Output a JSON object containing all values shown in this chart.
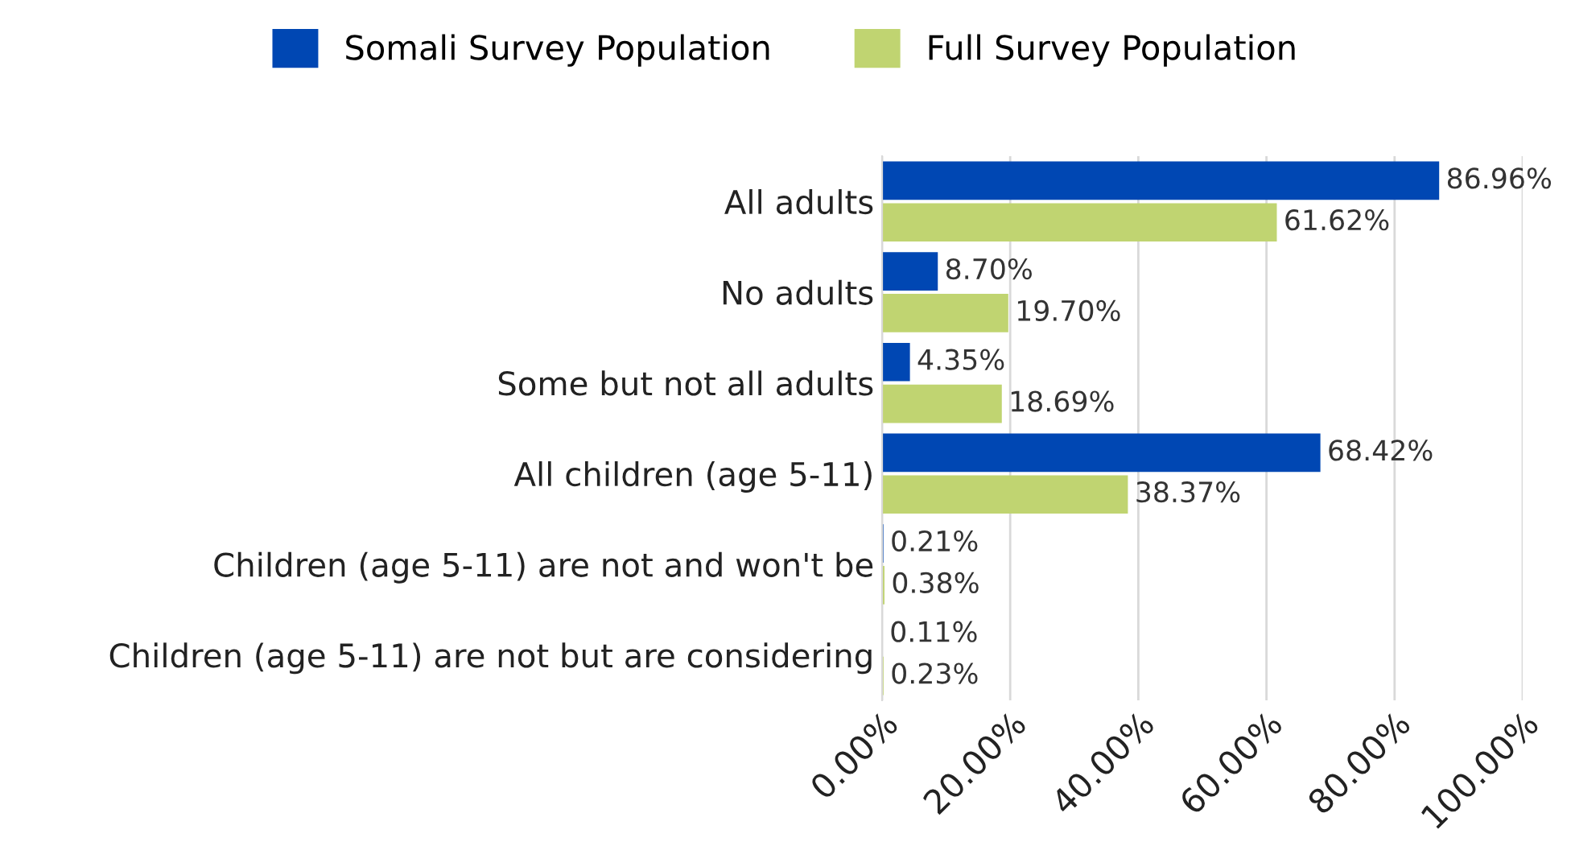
{
  "chart_data": {
    "type": "bar",
    "orientation": "horizontal",
    "categories": [
      "All adults",
      "No adults",
      "Some but not all adults",
      "All children (age 5-11)",
      "Children (age 5-11) are not and won't be",
      "Children (age 5-11) are not but are considering"
    ],
    "series": [
      {
        "name": "Somali Survey Population",
        "color": "#0047b3",
        "values": [
          86.96,
          8.7,
          4.35,
          68.42,
          0.21,
          0.11
        ],
        "value_labels": [
          "86.96%",
          "8.70%",
          "4.35%",
          "68.42%",
          "0.21%",
          "0.11%"
        ]
      },
      {
        "name": "Full Survey Population",
        "color": "#c0d471",
        "values": [
          61.62,
          19.7,
          18.69,
          38.37,
          0.38,
          0.23
        ],
        "value_labels": [
          "61.62%",
          "19.70%",
          "18.69%",
          "38.37%",
          "0.38%",
          "0.23%"
        ]
      }
    ],
    "xlim": [
      0,
      100
    ],
    "xticks": [
      {
        "value": 0,
        "label": "0.00%"
      },
      {
        "value": 20,
        "label": "20.00%"
      },
      {
        "value": 40,
        "label": "40.00%"
      },
      {
        "value": 60,
        "label": "60.00%"
      },
      {
        "value": 80,
        "label": "80.00%"
      },
      {
        "value": 100,
        "label": "100.00%"
      }
    ],
    "grid": "x",
    "legend": "top"
  }
}
